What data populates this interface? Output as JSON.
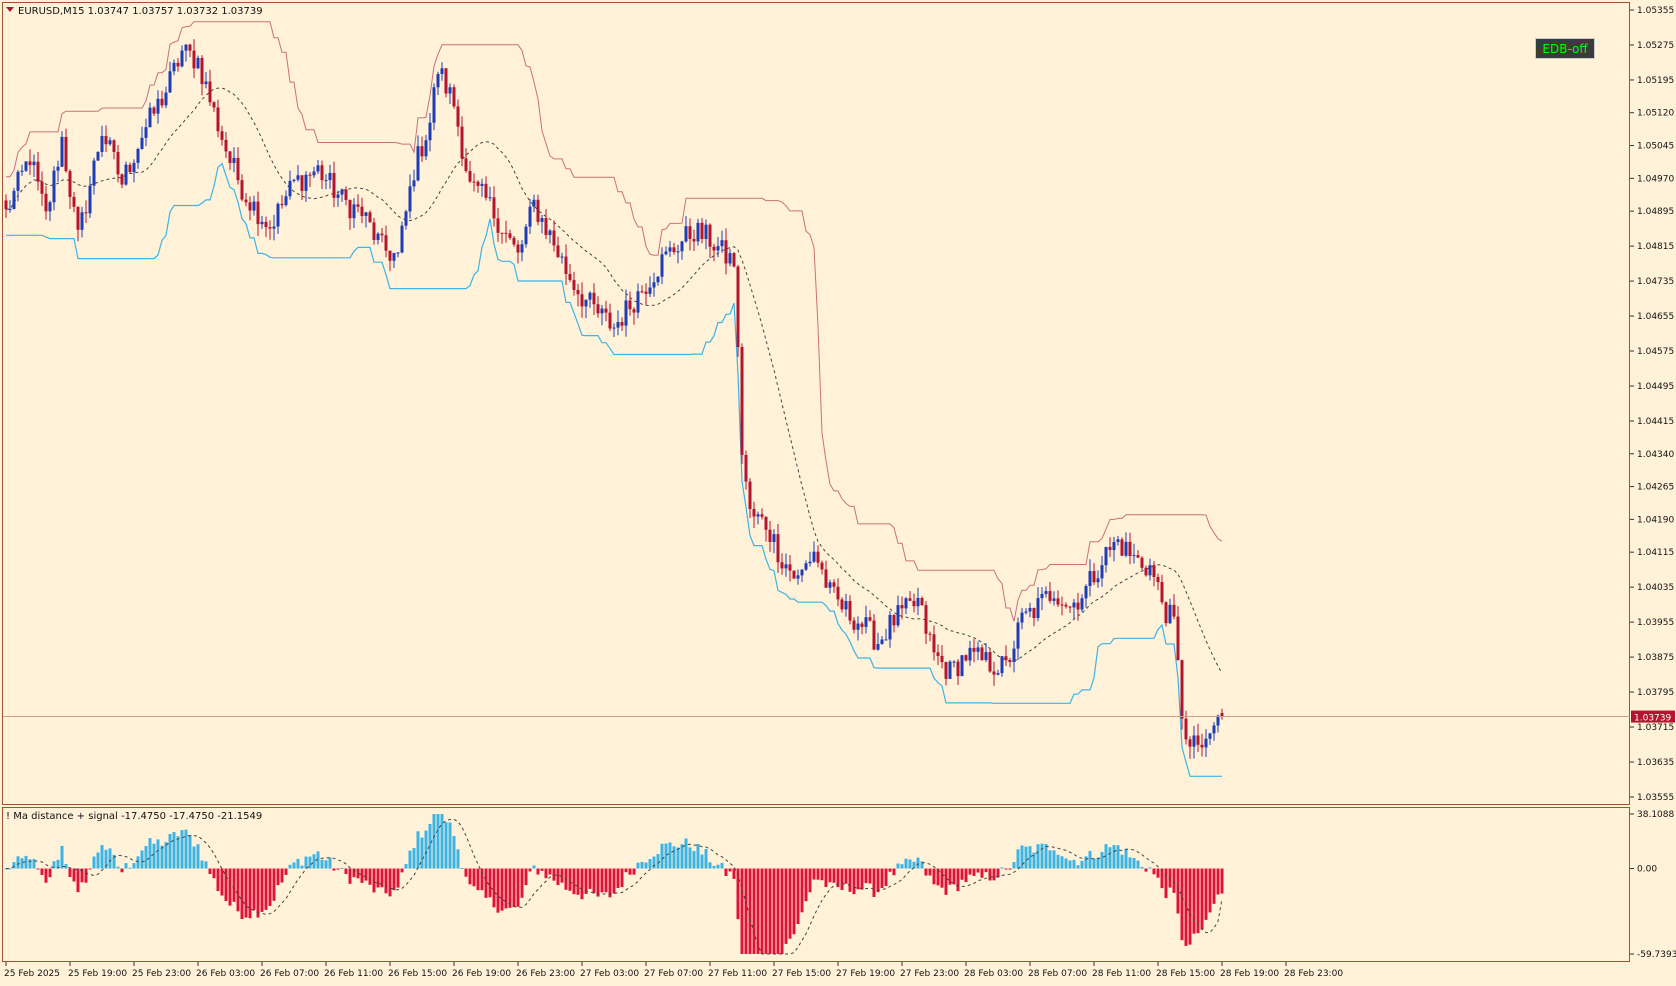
{
  "header": {
    "symbol_line": "EURUSD,M15  1.03747 1.03757 1.03732 1.03739"
  },
  "edb_button": {
    "label": "EDB-off"
  },
  "colors": {
    "background": "#FFF2D9",
    "frame": "#A0522D",
    "bull_candle": "#1E3CB4",
    "bear_candle": "#B4142D",
    "upper_band": "#C8707A",
    "lower_band": "#3CB4E6",
    "ma_dashed": "#444444",
    "hist_positive": "#3CB4E6",
    "hist_negative": "#DC143C",
    "price_tag": "#B4142D",
    "button_bg": "#3A3A3A",
    "button_text": "#00FF00"
  },
  "chart_data": [
    {
      "type": "candlestick",
      "title": "EURUSD,M15",
      "ohlc_readout": {
        "open": 1.03747,
        "high": 1.03757,
        "low": 1.03732,
        "close": 1.03739
      },
      "current_price": 1.03739,
      "current_price_label": "1.03739",
      "ylim": [
        1.03555,
        1.05355
      ],
      "price_ticks": [
        "1.05355",
        "1.05275",
        "1.05195",
        "1.05120",
        "1.05045",
        "1.04970",
        "1.04895",
        "1.04815",
        "1.04735",
        "1.04655",
        "1.04575",
        "1.04495",
        "1.04415",
        "1.04340",
        "1.04265",
        "1.04190",
        "1.04115",
        "1.04035",
        "1.03955",
        "1.03875",
        "1.03795",
        "1.03715",
        "1.03635",
        "1.03555"
      ],
      "time_ticks": [
        "25 Feb 2025",
        "25 Feb 19:00",
        "25 Feb 23:00",
        "26 Feb 03:00",
        "26 Feb 07:00",
        "26 Feb 11:00",
        "26 Feb 15:00",
        "26 Feb 19:00",
        "26 Feb 23:00",
        "27 Feb 03:00",
        "27 Feb 07:00",
        "27 Feb 11:00",
        "27 Feb 15:00",
        "27 Feb 19:00",
        "27 Feb 23:00",
        "28 Feb 03:00",
        "28 Feb 07:00",
        "28 Feb 11:00",
        "28 Feb 15:00",
        "28 Feb 19:00",
        "28 Feb 23:00"
      ],
      "bars_per_time_tick": 16,
      "close_anchors": [
        [
          0,
          1.0489
        ],
        [
          6,
          1.0502
        ],
        [
          10,
          1.0488
        ],
        [
          14,
          1.0506
        ],
        [
          18,
          1.0483
        ],
        [
          24,
          1.0508
        ],
        [
          29,
          1.0496
        ],
        [
          34,
          1.0507
        ],
        [
          40,
          1.0517
        ],
        [
          44,
          1.0526
        ],
        [
          48,
          1.0524
        ],
        [
          52,
          1.0512
        ],
        [
          56,
          1.0501
        ],
        [
          60,
          1.0493
        ],
        [
          66,
          1.0486
        ],
        [
          72,
          1.0496
        ],
        [
          78,
          1.0499
        ],
        [
          84,
          1.0492
        ],
        [
          89,
          1.0489
        ],
        [
          94,
          1.0481
        ],
        [
          98,
          1.0479
        ],
        [
          102,
          1.0499
        ],
        [
          106,
          1.051
        ],
        [
          108,
          1.0522
        ],
        [
          112,
          1.0514
        ],
        [
          116,
          1.0495
        ],
        [
          120,
          1.0492
        ],
        [
          124,
          1.0486
        ],
        [
          128,
          1.0479
        ],
        [
          132,
          1.0491
        ],
        [
          136,
          1.0484
        ],
        [
          140,
          1.0476
        ],
        [
          144,
          1.047
        ],
        [
          148,
          1.0466
        ],
        [
          152,
          1.0463
        ],
        [
          156,
          1.0468
        ],
        [
          160,
          1.0473
        ],
        [
          164,
          1.0478
        ],
        [
          168,
          1.0482
        ],
        [
          172,
          1.0485
        ],
        [
          176,
          1.0483
        ],
        [
          180,
          1.0479
        ],
        [
          182,
          1.0478
        ],
        [
          184,
          1.0435
        ],
        [
          186,
          1.042
        ],
        [
          190,
          1.0418
        ],
        [
          194,
          1.041
        ],
        [
          198,
          1.0405
        ],
        [
          202,
          1.0412
        ],
        [
          206,
          1.0402
        ],
        [
          210,
          1.0398
        ],
        [
          214,
          1.0395
        ],
        [
          218,
          1.0391
        ],
        [
          222,
          1.0396
        ],
        [
          228,
          1.04
        ],
        [
          232,
          1.0388
        ],
        [
          236,
          1.0384
        ],
        [
          240,
          1.0388
        ],
        [
          246,
          1.0386
        ],
        [
          250,
          1.0385
        ],
        [
          254,
          1.0396
        ],
        [
          258,
          1.0399
        ],
        [
          262,
          1.0403
        ],
        [
          266,
          1.0399
        ],
        [
          270,
          1.0403
        ],
        [
          274,
          1.041
        ],
        [
          278,
          1.0414
        ],
        [
          282,
          1.041
        ],
        [
          286,
          1.0408
        ],
        [
          290,
          1.0398
        ],
        [
          292,
          1.0395
        ],
        [
          294,
          1.0375
        ],
        [
          296,
          1.0366
        ],
        [
          298,
          1.0368
        ],
        [
          300,
          1.0366
        ],
        [
          302,
          1.0372
        ],
        [
          304,
          1.0374
        ]
      ],
      "overlay_lines": [
        "upper band",
        "lower band",
        "moving average (dashed)"
      ]
    },
    {
      "type": "bar",
      "title": "! Ma distance + signal -17.4750 -17.4750 -21.1549",
      "title_parts": {
        "name": "! Ma distance + signal",
        "values": [
          "-17.4750",
          "-17.4750",
          "-21.1549"
        ]
      },
      "ylim": [
        -59.7393,
        38.1088
      ],
      "tick_labels": [
        "38.1088",
        "0.00",
        "-59.7393"
      ],
      "tick_values": [
        38.1088,
        0.0,
        -59.7393
      ],
      "series_names": [
        "Ma distance",
        "signal"
      ],
      "last_values": {
        "ma_distance": -17.475,
        "signal": -21.1549
      }
    }
  ]
}
